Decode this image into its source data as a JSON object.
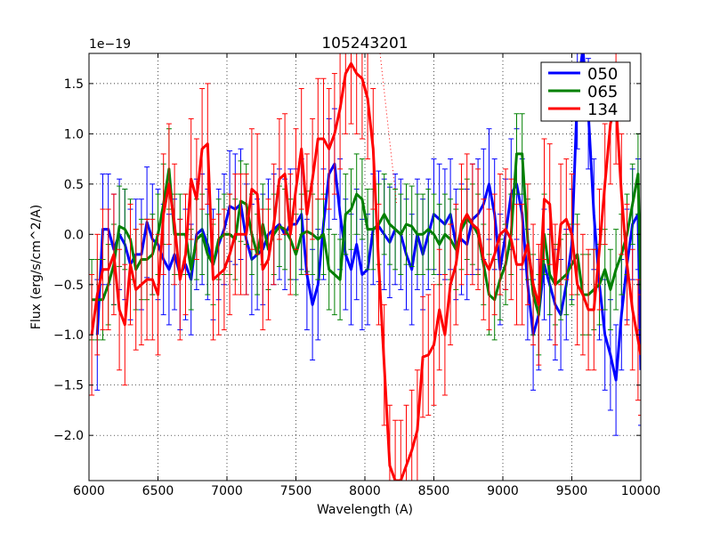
{
  "chart_data": {
    "type": "line",
    "title": "105243201",
    "xlabel": "Wavelength (A)",
    "ylabel": "Flux (erg/s/cm^2/A)",
    "offset_label": "1e−19",
    "xlim": [
      6000,
      10000
    ],
    "ylim": [
      -2.45,
      1.8
    ],
    "x_ticks": [
      6000,
      6500,
      7000,
      7500,
      8000,
      8500,
      9000,
      9500,
      10000
    ],
    "x_tick_labels": [
      "6000",
      "6500",
      "7000",
      "7500",
      "8000",
      "8500",
      "9000",
      "9500",
      "10000"
    ],
    "y_ticks": [
      -2.0,
      -1.5,
      -1.0,
      -0.5,
      0.0,
      0.5,
      1.0,
      1.5
    ],
    "y_tick_labels": [
      "−2.0",
      "−1.5",
      "−1.0",
      "−0.5",
      "0.0",
      "0.5",
      "1.0",
      "1.5"
    ],
    "grid": true,
    "legend_position": "top-right",
    "series": [
      {
        "name": "050",
        "color": "#0000ff",
        "err": 0.55,
        "points": [
          [
            6060,
            -1.0
          ],
          [
            6100,
            0.05
          ],
          [
            6140,
            0.05
          ],
          [
            6180,
            -0.15
          ],
          [
            6220,
            0.0
          ],
          [
            6260,
            -0.1
          ],
          [
            6300,
            -0.3
          ],
          [
            6340,
            -0.2
          ],
          [
            6380,
            -0.2
          ],
          [
            6420,
            0.12
          ],
          [
            6460,
            -0.05
          ],
          [
            6500,
            -0.1
          ],
          [
            6540,
            -0.25
          ],
          [
            6580,
            -0.35
          ],
          [
            6620,
            -0.2
          ],
          [
            6660,
            -0.4
          ],
          [
            6700,
            -0.3
          ],
          [
            6740,
            -0.45
          ],
          [
            6780,
            0.0
          ],
          [
            6820,
            0.05
          ],
          [
            6860,
            -0.1
          ],
          [
            6900,
            -0.3
          ],
          [
            6940,
            -0.1
          ],
          [
            6980,
            0.05
          ],
          [
            7020,
            0.28
          ],
          [
            7060,
            0.25
          ],
          [
            7100,
            0.3
          ],
          [
            7140,
            -0.05
          ],
          [
            7180,
            -0.25
          ],
          [
            7220,
            -0.2
          ],
          [
            7260,
            -0.15
          ],
          [
            7300,
            0.0
          ],
          [
            7340,
            0.05
          ],
          [
            7380,
            0.1
          ],
          [
            7420,
            0.0
          ],
          [
            7460,
            0.1
          ],
          [
            7500,
            0.1
          ],
          [
            7540,
            0.2
          ],
          [
            7580,
            -0.4
          ],
          [
            7620,
            -0.7
          ],
          [
            7660,
            -0.5
          ],
          [
            7700,
            0.1
          ],
          [
            7740,
            0.6
          ],
          [
            7780,
            0.7
          ],
          [
            7820,
            0.2
          ],
          [
            7860,
            -0.2
          ],
          [
            7900,
            -0.35
          ],
          [
            7940,
            -0.1
          ],
          [
            7980,
            -0.4
          ],
          [
            8020,
            -0.35
          ],
          [
            8060,
            0.05
          ],
          [
            8100,
            0.08
          ],
          [
            8140,
            -0.0
          ],
          [
            8180,
            -0.08
          ],
          [
            8220,
            0.05
          ],
          [
            8260,
            0.0
          ],
          [
            8300,
            -0.2
          ],
          [
            8340,
            -0.35
          ],
          [
            8380,
            0.0
          ],
          [
            8420,
            -0.2
          ],
          [
            8460,
            0.0
          ],
          [
            8500,
            0.2
          ],
          [
            8540,
            0.15
          ],
          [
            8580,
            0.1
          ],
          [
            8620,
            0.2
          ],
          [
            8660,
            -0.1
          ],
          [
            8700,
            -0.05
          ],
          [
            8740,
            -0.1
          ],
          [
            8780,
            0.15
          ],
          [
            8820,
            0.2
          ],
          [
            8860,
            0.3
          ],
          [
            8900,
            0.5
          ],
          [
            8940,
            0.2
          ],
          [
            8980,
            -0.35
          ],
          [
            9020,
            0.0
          ],
          [
            9060,
            0.4
          ],
          [
            9100,
            0.5
          ],
          [
            9140,
            0.2
          ],
          [
            9180,
            -0.5
          ],
          [
            9220,
            -1.0
          ],
          [
            9260,
            -0.8
          ],
          [
            9300,
            -0.3
          ],
          [
            9340,
            -0.5
          ],
          [
            9380,
            -0.7
          ],
          [
            9420,
            -0.8
          ],
          [
            9460,
            -0.5
          ],
          [
            9500,
            -0.1
          ],
          [
            9540,
            1.4
          ],
          [
            9580,
            1.85
          ],
          [
            9620,
            1.2
          ],
          [
            9660,
            0.2
          ],
          [
            9700,
            -0.5
          ],
          [
            9740,
            -1.0
          ],
          [
            9780,
            -1.2
          ],
          [
            9820,
            -1.45
          ],
          [
            9860,
            -0.8
          ],
          [
            9900,
            -0.3
          ],
          [
            9940,
            0.1
          ],
          [
            9980,
            0.2
          ],
          [
            10000,
            -1.35
          ]
        ]
      },
      {
        "name": "065",
        "color": "#008000",
        "err": 0.4,
        "points": [
          [
            6020,
            -0.65
          ],
          [
            6060,
            -0.65
          ],
          [
            6100,
            -0.65
          ],
          [
            6140,
            -0.5
          ],
          [
            6180,
            -0.3
          ],
          [
            6220,
            0.08
          ],
          [
            6260,
            0.05
          ],
          [
            6300,
            -0.05
          ],
          [
            6340,
            -0.35
          ],
          [
            6380,
            -0.25
          ],
          [
            6420,
            -0.25
          ],
          [
            6460,
            -0.2
          ],
          [
            6500,
            0.0
          ],
          [
            6540,
            0.3
          ],
          [
            6580,
            0.65
          ],
          [
            6620,
            0.0
          ],
          [
            6660,
            0.0
          ],
          [
            6700,
            0.0
          ],
          [
            6740,
            -0.35
          ],
          [
            6780,
            -0.05
          ],
          [
            6820,
            0.0
          ],
          [
            6860,
            -0.2
          ],
          [
            6900,
            -0.3
          ],
          [
            6940,
            -0.05
          ],
          [
            6980,
            0.0
          ],
          [
            7020,
            0.0
          ],
          [
            7060,
            -0.05
          ],
          [
            7100,
            0.33
          ],
          [
            7140,
            0.3
          ],
          [
            7180,
            0.0
          ],
          [
            7220,
            -0.2
          ],
          [
            7260,
            0.1
          ],
          [
            7300,
            -0.15
          ],
          [
            7340,
            0.0
          ],
          [
            7380,
            0.08
          ],
          [
            7420,
            0.05
          ],
          [
            7460,
            -0.05
          ],
          [
            7500,
            -0.2
          ],
          [
            7540,
            0.0
          ],
          [
            7580,
            0.03
          ],
          [
            7620,
            0.0
          ],
          [
            7660,
            -0.05
          ],
          [
            7700,
            0.0
          ],
          [
            7740,
            -0.35
          ],
          [
            7780,
            -0.4
          ],
          [
            7820,
            -0.45
          ],
          [
            7860,
            0.2
          ],
          [
            7900,
            0.25
          ],
          [
            7940,
            0.4
          ],
          [
            7980,
            0.35
          ],
          [
            8020,
            0.05
          ],
          [
            8060,
            0.05
          ],
          [
            8100,
            0.1
          ],
          [
            8140,
            0.2
          ],
          [
            8180,
            0.1
          ],
          [
            8220,
            0.05
          ],
          [
            8260,
            0.0
          ],
          [
            8300,
            0.1
          ],
          [
            8340,
            0.08
          ],
          [
            8380,
            0.0
          ],
          [
            8420,
            0.0
          ],
          [
            8460,
            0.05
          ],
          [
            8500,
            0.0
          ],
          [
            8540,
            -0.1
          ],
          [
            8580,
            0.0
          ],
          [
            8620,
            -0.05
          ],
          [
            8660,
            -0.15
          ],
          [
            8700,
            0.05
          ],
          [
            8740,
            0.15
          ],
          [
            8780,
            0.1
          ],
          [
            8820,
            0.0
          ],
          [
            8860,
            -0.3
          ],
          [
            8900,
            -0.6
          ],
          [
            8940,
            -0.65
          ],
          [
            8980,
            -0.45
          ],
          [
            9020,
            -0.3
          ],
          [
            9060,
            0.0
          ],
          [
            9100,
            0.8
          ],
          [
            9140,
            0.8
          ],
          [
            9180,
            -0.05
          ],
          [
            9220,
            -0.6
          ],
          [
            9260,
            -0.8
          ],
          [
            9300,
            0.0
          ],
          [
            9340,
            -0.4
          ],
          [
            9380,
            -0.5
          ],
          [
            9420,
            -0.45
          ],
          [
            9460,
            -0.4
          ],
          [
            9500,
            -0.3
          ],
          [
            9540,
            -0.2
          ],
          [
            9580,
            -0.6
          ],
          [
            9620,
            -0.6
          ],
          [
            9660,
            -0.55
          ],
          [
            9700,
            -0.5
          ],
          [
            9740,
            -0.35
          ],
          [
            9780,
            -0.55
          ],
          [
            9820,
            -0.35
          ],
          [
            9860,
            -0.2
          ],
          [
            9900,
            0.0
          ],
          [
            9940,
            0.3
          ],
          [
            9980,
            0.6
          ],
          [
            10000,
            -0.55
          ]
        ]
      },
      {
        "name": "134",
        "color": "#ff0000",
        "err": 0.6,
        "points": [
          [
            6020,
            -1.0
          ],
          [
            6060,
            -0.6
          ],
          [
            6100,
            -0.35
          ],
          [
            6140,
            -0.35
          ],
          [
            6180,
            -0.2
          ],
          [
            6220,
            -0.75
          ],
          [
            6260,
            -0.9
          ],
          [
            6300,
            -0.3
          ],
          [
            6340,
            -0.55
          ],
          [
            6380,
            -0.5
          ],
          [
            6420,
            -0.45
          ],
          [
            6460,
            -0.45
          ],
          [
            6500,
            -0.6
          ],
          [
            6540,
            0.2
          ],
          [
            6580,
            0.5
          ],
          [
            6620,
            0.1
          ],
          [
            6660,
            -0.45
          ],
          [
            6700,
            -0.2
          ],
          [
            6740,
            0.55
          ],
          [
            6780,
            0.35
          ],
          [
            6820,
            0.85
          ],
          [
            6860,
            0.9
          ],
          [
            6900,
            -0.45
          ],
          [
            6940,
            -0.4
          ],
          [
            6980,
            -0.35
          ],
          [
            7020,
            -0.2
          ],
          [
            7060,
            0.0
          ],
          [
            7100,
            0.0
          ],
          [
            7140,
            0.0
          ],
          [
            7180,
            0.45
          ],
          [
            7220,
            0.4
          ],
          [
            7260,
            -0.35
          ],
          [
            7300,
            -0.25
          ],
          [
            7340,
            0.1
          ],
          [
            7380,
            0.55
          ],
          [
            7420,
            0.6
          ],
          [
            7460,
            0.0
          ],
          [
            7500,
            0.45
          ],
          [
            7540,
            0.85
          ],
          [
            7580,
            0.2
          ],
          [
            7620,
            0.55
          ],
          [
            7660,
            0.95
          ],
          [
            7700,
            0.95
          ],
          [
            7740,
            0.85
          ],
          [
            7780,
            1.0
          ],
          [
            7820,
            1.25
          ],
          [
            7860,
            1.6
          ],
          [
            7900,
            1.7
          ],
          [
            7940,
            1.6
          ],
          [
            7980,
            1.55
          ],
          [
            8020,
            1.35
          ],
          [
            8060,
            0.85
          ],
          [
            8100,
            -0.3
          ],
          [
            8140,
            -1.3
          ],
          [
            8180,
            -2.3
          ],
          [
            8220,
            -2.45
          ],
          [
            8260,
            -2.45
          ],
          [
            8300,
            -2.3
          ],
          [
            8340,
            -2.15
          ],
          [
            8380,
            -1.95
          ],
          [
            8420,
            -1.22
          ],
          [
            8460,
            -1.2
          ],
          [
            8500,
            -1.1
          ],
          [
            8540,
            -0.75
          ],
          [
            8580,
            -1.0
          ],
          [
            8620,
            -0.5
          ],
          [
            8660,
            -0.3
          ],
          [
            8700,
            0.1
          ],
          [
            8740,
            0.2
          ],
          [
            8780,
            0.1
          ],
          [
            8820,
            0.05
          ],
          [
            8860,
            -0.25
          ],
          [
            8900,
            -0.35
          ],
          [
            8940,
            -0.2
          ],
          [
            8980,
            0.0
          ],
          [
            9020,
            0.05
          ],
          [
            9060,
            -0.05
          ],
          [
            9100,
            -0.3
          ],
          [
            9140,
            -0.3
          ],
          [
            9180,
            -0.1
          ],
          [
            9220,
            -0.5
          ],
          [
            9260,
            -0.7
          ],
          [
            9300,
            0.35
          ],
          [
            9340,
            0.3
          ],
          [
            9380,
            -0.5
          ],
          [
            9420,
            0.1
          ],
          [
            9460,
            0.15
          ],
          [
            9500,
            0.0
          ],
          [
            9540,
            -0.5
          ],
          [
            9580,
            -0.6
          ],
          [
            9620,
            -0.75
          ],
          [
            9660,
            -0.75
          ],
          [
            9700,
            -0.15
          ],
          [
            9740,
            0.5
          ],
          [
            9780,
            1.1
          ],
          [
            9820,
            1.3
          ],
          [
            9860,
            0.4
          ],
          [
            9900,
            -0.3
          ],
          [
            9940,
            -0.75
          ],
          [
            9980,
            -1.05
          ],
          [
            10000,
            -1.2
          ]
        ]
      }
    ],
    "annotation_dotted": {
      "color": "#ff0000",
      "from": [
        8110,
        1.8
      ],
      "to": [
        8230,
        0.3
      ]
    }
  }
}
